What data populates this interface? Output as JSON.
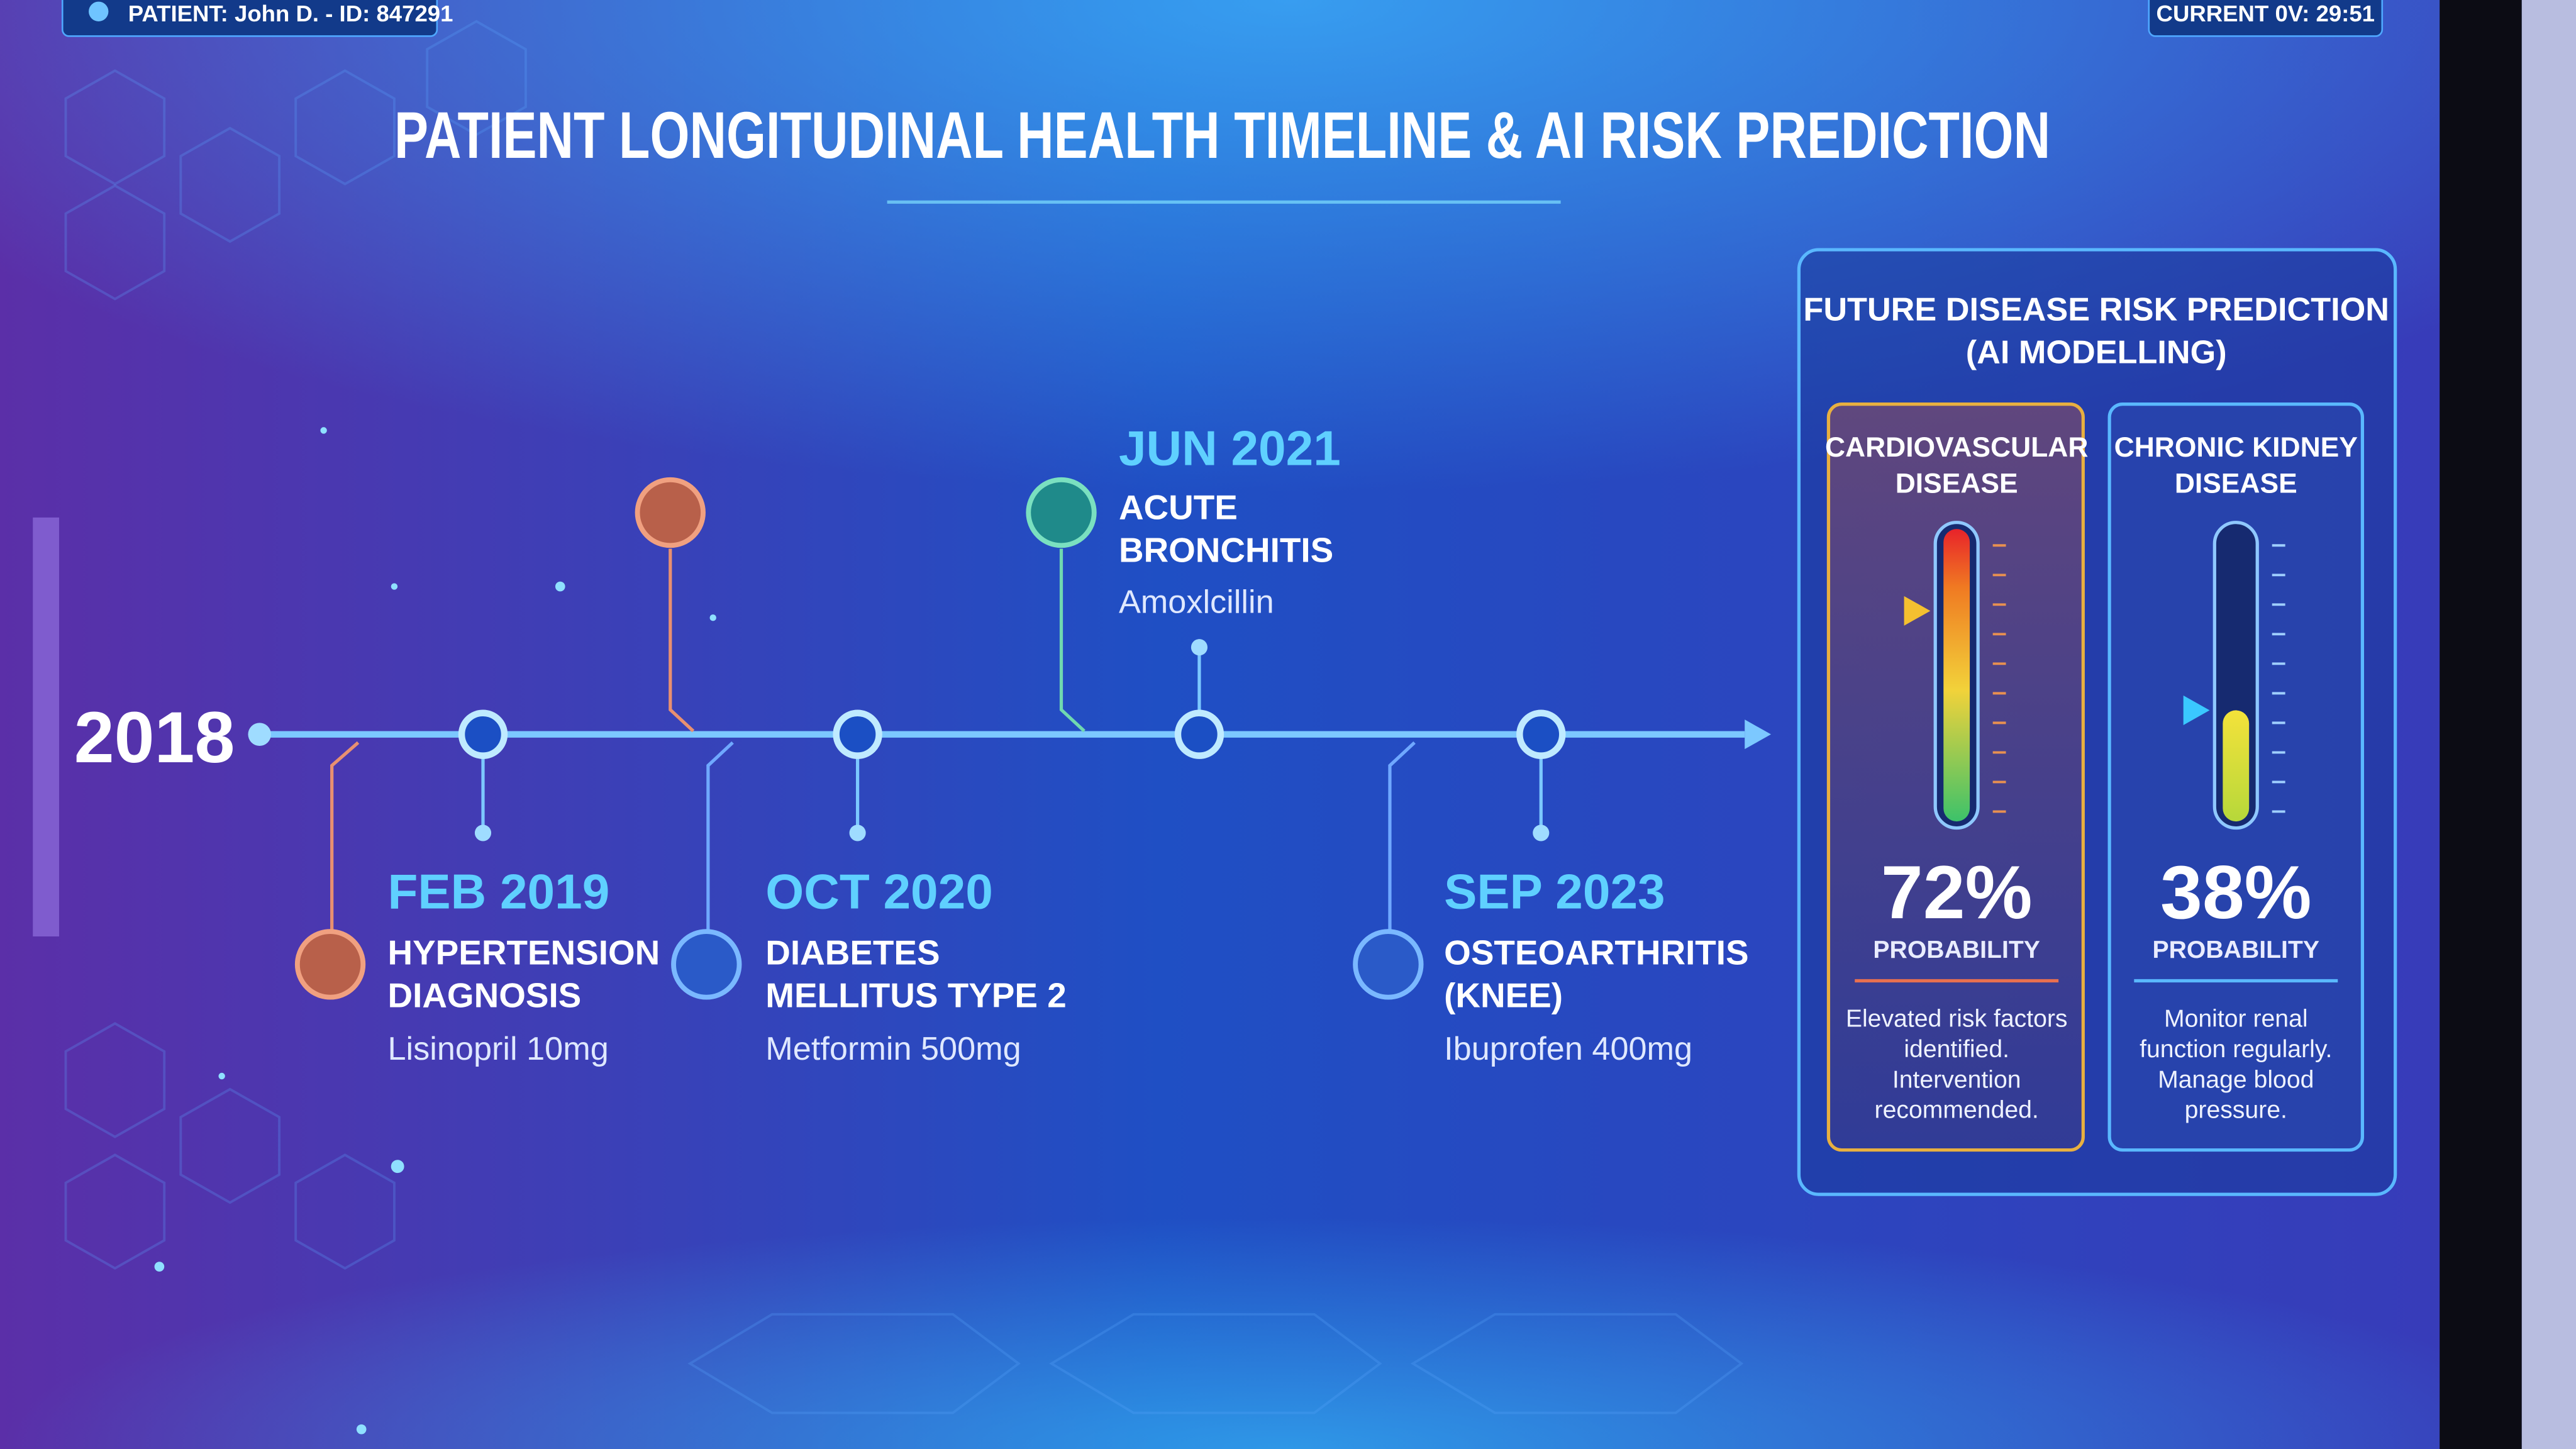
{
  "header": {
    "patient": "PATIENT: John D. - ID: 847291",
    "current": "CURRENT 0V: 29:51",
    "title": "PATIENT LONGITUDINAL HEALTH TIMELINE & AI RISK PREDICTION"
  },
  "timeline": {
    "start": "2018",
    "events": [
      {
        "date": "FEB 2019",
        "title": [
          "HYPERTENSION",
          "DIAGNOSIS"
        ],
        "medication": "Lisinopril 10mg"
      },
      {
        "date": "OCT 2020",
        "title": [
          "DIABETES",
          "MELLITUS TYPE 2"
        ],
        "medication": "Metformin 500mg"
      },
      {
        "date": "JUN 2021",
        "title": [
          "ACUTE",
          "BRONCHITIS"
        ],
        "medication": "Amoxlcillin"
      },
      {
        "date": "SEP 2023",
        "title": [
          "OSTEOARTHRITIS",
          "(KNEE)"
        ],
        "medication": "Ibuprofen 400mg"
      }
    ]
  },
  "risk_panel": {
    "title": [
      "FUTURE DISEASE RISK PREDICTION",
      "(AI MODELLING)"
    ],
    "cards": [
      {
        "name": [
          "CARDIOVASCULAR",
          "DISEASE"
        ],
        "probability": {
          "value": 72,
          "label": "72%"
        },
        "probability_label": "PROBABILITY",
        "note": [
          "Elevated risk factors",
          "identified.",
          "Intervention",
          "recommended."
        ]
      },
      {
        "name": [
          "CHRONIC KIDNEY",
          "DISEASE"
        ],
        "probability": {
          "value": 38,
          "label": "38%"
        },
        "probability_label": "PROBABILITY",
        "note": [
          "Monitor renal",
          "function regularly.",
          "Manage blood",
          "pressure."
        ]
      }
    ]
  }
}
